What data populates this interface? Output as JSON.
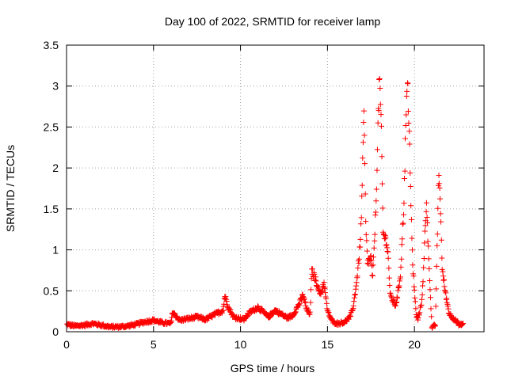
{
  "chart_data": {
    "type": "scatter",
    "title": "Day 100 of 2022, SRMTID for receiver lamp",
    "xlabel": "GPS time / hours",
    "ylabel": "SRMTID / TECUs",
    "xlim": [
      0,
      24
    ],
    "ylim": [
      0,
      3.5
    ],
    "xticks": [
      0,
      5,
      10,
      15,
      20
    ],
    "xtick_labels": [
      "0",
      "5",
      "10",
      "15",
      "20"
    ],
    "yticks": [
      0,
      0.5,
      1,
      1.5,
      2,
      2.5,
      3,
      3.5
    ],
    "ytick_labels": [
      "0",
      "0.5",
      "1",
      "1.5",
      "2",
      "2.5",
      "3",
      "3.5"
    ],
    "grid": true,
    "marker": "+",
    "colors": {
      "series": "#ff0000",
      "axis": "#000000",
      "grid": "#a0a0a0"
    },
    "series": [
      {
        "name": "SRMTID",
        "x": [
          0.0,
          0.5,
          1.0,
          1.5,
          2.0,
          2.5,
          3.0,
          3.5,
          4.0,
          4.5,
          5.0,
          5.5,
          6.0,
          6.1,
          6.5,
          7.0,
          7.5,
          8.0,
          8.5,
          9.0,
          9.1,
          9.3,
          9.6,
          10.0,
          10.2,
          10.5,
          11.0,
          11.3,
          11.6,
          12.0,
          12.3,
          12.7,
          13.0,
          13.4,
          13.6,
          13.8,
          14.0,
          14.1,
          14.3,
          14.6,
          14.8,
          15.0,
          15.3,
          15.6,
          16.0,
          16.3,
          16.5,
          16.7,
          16.9,
          17.0,
          17.1,
          17.2,
          17.3,
          17.5,
          17.6,
          17.8,
          17.9,
          18.0,
          18.1,
          18.2,
          18.4,
          18.5,
          18.6,
          18.9,
          19.0,
          19.2,
          19.4,
          19.5,
          19.6,
          19.7,
          19.8,
          19.9,
          20.1,
          20.2,
          20.4,
          20.5,
          20.6,
          20.7,
          20.8,
          20.9,
          21.0,
          21.2,
          21.3,
          21.4,
          21.5,
          21.6,
          21.8,
          22.0,
          22.3,
          22.6,
          22.8
        ],
        "y": [
          0.09,
          0.07,
          0.08,
          0.1,
          0.08,
          0.06,
          0.06,
          0.07,
          0.09,
          0.12,
          0.14,
          0.11,
          0.1,
          0.24,
          0.14,
          0.16,
          0.18,
          0.15,
          0.21,
          0.26,
          0.44,
          0.3,
          0.18,
          0.16,
          0.15,
          0.23,
          0.3,
          0.24,
          0.18,
          0.26,
          0.22,
          0.17,
          0.2,
          0.35,
          0.45,
          0.27,
          0.22,
          0.75,
          0.65,
          0.45,
          0.6,
          0.25,
          0.12,
          0.1,
          0.12,
          0.18,
          0.32,
          0.65,
          1.1,
          1.8,
          2.7,
          1.3,
          0.85,
          0.9,
          0.65,
          1.6,
          2.5,
          3.1,
          2.4,
          1.2,
          1.1,
          0.9,
          0.45,
          0.32,
          0.4,
          0.7,
          1.6,
          2.5,
          3.05,
          2.5,
          1.5,
          0.8,
          0.2,
          0.15,
          0.35,
          0.6,
          1.2,
          1.6,
          1.0,
          0.55,
          0.05,
          0.08,
          1.0,
          1.95,
          1.5,
          0.75,
          0.45,
          0.22,
          0.15,
          0.08,
          0.1
        ]
      }
    ]
  }
}
